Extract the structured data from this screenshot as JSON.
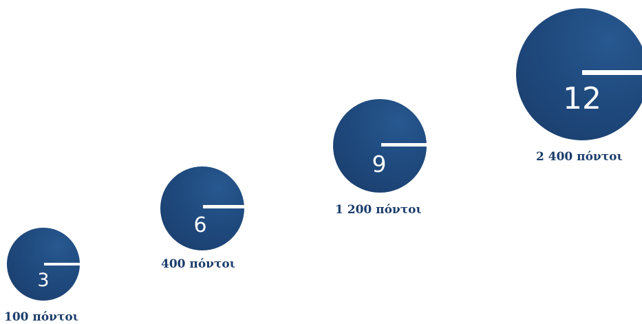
{
  "tiers": [
    {
      "number": "3",
      "points": "100 πόντοι"
    },
    {
      "number": "6",
      "points": "400 πόντοι"
    },
    {
      "number": "9",
      "points": "1 200 πόντοι"
    },
    {
      "number": "12",
      "points": "2 400 πόντοι"
    }
  ],
  "colors": {
    "circle": "#1f4a7e",
    "label": "#1b3d6b",
    "bar": "#ffffff"
  }
}
